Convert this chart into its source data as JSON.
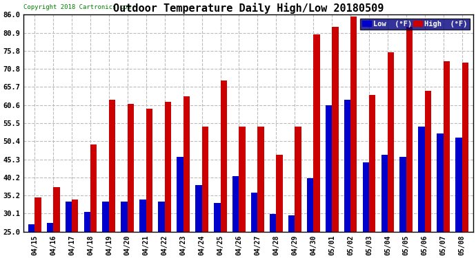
{
  "title": "Outdoor Temperature Daily High/Low 20180509",
  "copyright": "Copyright 2018 Cartronics.com",
  "legend_low": "Low  (°F)",
  "legend_high": "High  (°F)",
  "low_color": "#0000cc",
  "high_color": "#cc0000",
  "background_color": "#ffffff",
  "grid_color": "#bbbbbb",
  "ylim": [
    25.0,
    86.0
  ],
  "yticks": [
    25.0,
    30.1,
    35.2,
    40.2,
    45.3,
    50.4,
    55.5,
    60.6,
    65.7,
    70.8,
    75.8,
    80.9,
    86.0
  ],
  "categories": [
    "04/15",
    "04/16",
    "04/17",
    "04/18",
    "04/19",
    "04/20",
    "04/21",
    "04/22",
    "04/23",
    "04/24",
    "04/25",
    "04/26",
    "04/27",
    "04/28",
    "04/29",
    "04/30",
    "05/01",
    "05/02",
    "05/03",
    "05/04",
    "05/05",
    "05/06",
    "05/07",
    "05/08"
  ],
  "highs": [
    34.5,
    37.5,
    34.0,
    49.5,
    62.0,
    61.0,
    59.5,
    61.5,
    63.0,
    54.5,
    67.5,
    54.5,
    54.5,
    46.5,
    54.5,
    80.5,
    82.5,
    85.5,
    63.5,
    75.5,
    82.5,
    64.5,
    73.0,
    72.5
  ],
  "lows": [
    27.0,
    27.5,
    33.5,
    30.5,
    33.5,
    33.5,
    34.0,
    33.5,
    46.0,
    38.0,
    33.0,
    40.5,
    36.0,
    30.0,
    29.5,
    40.0,
    60.5,
    62.0,
    44.5,
    46.5,
    46.0,
    54.5,
    52.5,
    51.5
  ]
}
